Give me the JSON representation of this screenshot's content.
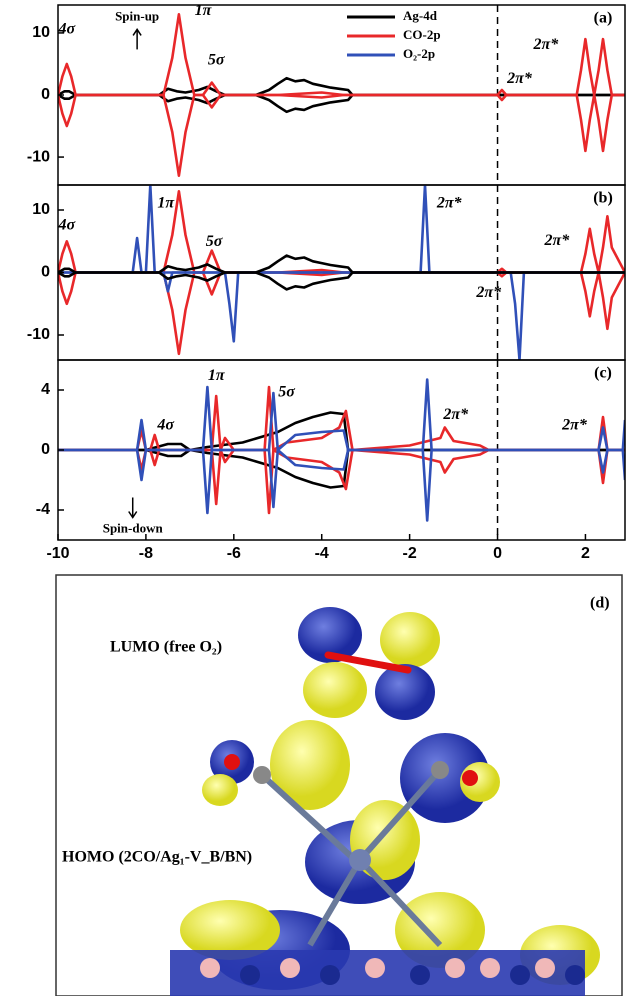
{
  "chart_data": [
    {
      "type": "line",
      "label": "(a)",
      "xlim": [
        -10,
        2.9
      ],
      "ylim": [
        -14.5,
        14.5
      ],
      "yticks": [
        -10,
        0,
        10
      ],
      "vline": 0,
      "legend": [
        {
          "name": "Ag-4d",
          "color": "#000000"
        },
        {
          "name": "CO-2p",
          "color": "#e8282a"
        },
        {
          "name": "O₂-2p",
          "color": "#3050b8"
        }
      ],
      "annotations": [
        "4σ",
        "Spin-up",
        "1π",
        "5σ",
        "2π*",
        "2π*"
      ],
      "series": [
        {
          "color": "#000000",
          "x": [
            -10,
            -9.85,
            -9.75,
            -9.6,
            -7.7,
            -7.5,
            -7.3,
            -7.1,
            -6.8,
            -6.6,
            -6.4,
            -6.2,
            -5.5,
            -5.2,
            -5,
            -4.8,
            -4.6,
            -4.4,
            -4.2,
            -4,
            -3.8,
            -3.6,
            -3.4,
            -3.3,
            -2,
            2.9
          ],
          "values": [
            0,
            0.6,
            0.6,
            0,
            0,
            1,
            0.6,
            0.4,
            0.8,
            1.3,
            0.6,
            0,
            0,
            0.8,
            1.8,
            2.7,
            2.2,
            2.4,
            1.8,
            1.5,
            1.2,
            1,
            0.8,
            0,
            0,
            0
          ],
          "values_down": [
            0,
            -0.6,
            -0.6,
            0,
            0,
            -1,
            -0.6,
            -0.4,
            -0.8,
            -1.3,
            -0.6,
            0,
            0,
            -0.8,
            -1.8,
            -2.7,
            -2.2,
            -2.4,
            -1.8,
            -1.5,
            -1.2,
            -1,
            -0.8,
            0,
            0,
            0
          ]
        },
        {
          "color": "#e8282a",
          "x": [
            -10,
            -9.9,
            -9.8,
            -9.7,
            -9.6,
            -7.6,
            -7.4,
            -7.25,
            -7.1,
            -6.9,
            -6.7,
            -6.5,
            -6.3,
            -5,
            -4,
            -3.5,
            0,
            0.1,
            0.2,
            1.8,
            1.9,
            2.0,
            2.1,
            2.2,
            2.3,
            2.4,
            2.5,
            2.6,
            2.9
          ],
          "values": [
            0,
            3,
            5,
            3,
            0,
            0,
            6,
            13,
            6,
            0,
            0,
            2,
            0,
            0,
            0.4,
            0,
            0,
            0.8,
            0,
            0,
            4,
            9,
            4,
            0,
            4,
            9,
            4,
            0,
            0
          ],
          "values_down": [
            0,
            -3,
            -5,
            -3,
            0,
            0,
            -6,
            -13,
            -6,
            0,
            0,
            -2,
            0,
            0,
            -0.4,
            0,
            0,
            -0.8,
            0,
            0,
            -4,
            -9,
            -4,
            0,
            -4,
            -9,
            -4,
            0,
            0
          ]
        }
      ]
    },
    {
      "type": "line",
      "label": "(b)",
      "xlim": [
        -10,
        2.9
      ],
      "ylim": [
        -14,
        14
      ],
      "yticks": [
        -10,
        0,
        10
      ],
      "vline": 0,
      "annotations": [
        "4σ",
        "1π",
        "5σ",
        "2π*",
        "2π*",
        "2π*"
      ],
      "series": [
        {
          "color": "#e8282a",
          "x": [
            -10,
            -9.9,
            -9.8,
            -9.7,
            -9.6,
            -7.6,
            -7.4,
            -7.25,
            -7.1,
            -6.9,
            -6.7,
            -6.5,
            -6.3,
            -5,
            -4,
            -3.5,
            0,
            0.1,
            0.2,
            1.9,
            2.0,
            2.1,
            2.2,
            2.3,
            2.4,
            2.5,
            2.6,
            2.9
          ],
          "values": [
            0,
            3,
            5,
            3,
            0,
            0,
            6,
            13,
            6,
            0,
            0,
            3.5,
            0,
            0,
            0.4,
            0,
            0,
            0.6,
            0,
            0,
            3,
            7,
            3,
            0,
            4,
            9,
            4,
            0
          ],
          "values_down": [
            0,
            -3,
            -5,
            -3,
            0,
            0,
            -6,
            -13,
            -6,
            0,
            0,
            -3.5,
            0,
            0,
            -0.4,
            0,
            0,
            -0.6,
            0,
            0,
            -3,
            -7,
            -3,
            0,
            -4,
            -9,
            -4,
            0
          ]
        },
        {
          "color": "#3050b8",
          "x": [
            -10,
            -8.3,
            -8.2,
            -8.1,
            -8.0,
            -7.9,
            -7.8,
            -7.6,
            -7.5,
            -7.4,
            -6.2,
            -6.1,
            -6.0,
            -5.9,
            -1.75,
            -1.65,
            -1.55,
            0.3,
            0.4,
            0.5,
            0.6,
            2.9
          ],
          "values": [
            0,
            0,
            5.5,
            0,
            0,
            14,
            0,
            0,
            0,
            0,
            0,
            0,
            0,
            0,
            0,
            14,
            0,
            0,
            0,
            0,
            0,
            0
          ],
          "values_down": [
            0,
            0,
            0,
            0,
            0,
            0,
            0,
            0,
            -3,
            0,
            0,
            -5,
            -11,
            0,
            0,
            0,
            0,
            0,
            -5,
            -14,
            0,
            0
          ]
        },
        {
          "color": "#000000",
          "x": [
            -10,
            -9.85,
            -9.75,
            -9.6,
            -7.7,
            -7.5,
            -7.3,
            -7.1,
            -6.8,
            -6.6,
            -6.4,
            -6.2,
            -5.5,
            -5.2,
            -5,
            -4.8,
            -4.6,
            -4.4,
            -4.2,
            -4,
            -3.8,
            -3.6,
            -3.4,
            -3.3,
            -2,
            2.9
          ],
          "values": [
            0,
            0.6,
            0.6,
            0,
            0,
            1,
            0.6,
            0.4,
            0.8,
            1.3,
            0.6,
            0,
            0,
            0.8,
            1.8,
            2.7,
            2.2,
            2.4,
            1.8,
            1.5,
            1.2,
            1,
            0.8,
            0,
            0,
            0
          ],
          "values_down": [
            0,
            -0.6,
            -0.6,
            0,
            0,
            -1,
            -0.6,
            -0.4,
            -0.8,
            -1.3,
            -0.6,
            0,
            0,
            -0.8,
            -1.8,
            -2.7,
            -2.2,
            -2.4,
            -1.8,
            -1.5,
            -1.2,
            -1,
            -0.8,
            0,
            0,
            0
          ]
        }
      ]
    },
    {
      "type": "line",
      "label": "(c)",
      "xlim": [
        -10,
        2.9
      ],
      "ylim": [
        -6,
        6
      ],
      "yticks": [
        -4,
        0,
        4
      ],
      "vline": 0,
      "xticks": [
        -10,
        -8,
        -6,
        -4,
        -2,
        0,
        2
      ],
      "annotations": [
        "4σ",
        "1π",
        "5σ",
        "2π*",
        "2π*",
        "Spin-down"
      ],
      "series": [
        {
          "color": "#000000",
          "x": [
            -10,
            -8,
            -7.5,
            -7.2,
            -7,
            -6.6,
            -5.8,
            -5,
            -4.6,
            -4.2,
            -3.8,
            -3.5,
            -3.4,
            -2,
            2.9
          ],
          "values": [
            0,
            0,
            0.4,
            0.4,
            0,
            0.2,
            0.5,
            1.2,
            1.8,
            2.2,
            2.5,
            2.4,
            0,
            0,
            0
          ],
          "values_down": [
            0,
            0,
            -0.4,
            -0.4,
            0,
            -0.2,
            -0.5,
            -1.2,
            -1.8,
            -2.2,
            -2.5,
            -2.4,
            0,
            0,
            0
          ]
        },
        {
          "color": "#e8282a",
          "x": [
            -10,
            -8.2,
            -8.1,
            -8.0,
            -7.9,
            -7.8,
            -7.7,
            -7.6,
            -6.5,
            -6.4,
            -6.3,
            -6.2,
            -6.0,
            -5.3,
            -5.2,
            -5.1,
            -4.8,
            -4,
            -3.6,
            -3.45,
            -3.3,
            -2,
            -1.3,
            -1.2,
            -1.0,
            -0.4,
            -0.2,
            0,
            2.3,
            2.4,
            2.5,
            2.9
          ],
          "values": [
            0,
            0,
            1.3,
            0,
            0,
            1,
            0,
            0,
            0,
            3.6,
            0,
            0.8,
            0,
            0,
            4.2,
            0,
            0.5,
            0.8,
            1.5,
            2.6,
            0,
            0.3,
            0.8,
            1.5,
            0.6,
            0.3,
            0,
            0,
            0,
            2.2,
            0,
            0
          ],
          "values_down": [
            0,
            0,
            -1.3,
            0,
            0,
            -1,
            0,
            0,
            0,
            -3.6,
            0,
            -0.8,
            0,
            0,
            -4.2,
            0,
            -0.5,
            -0.8,
            -1.5,
            -2.6,
            0,
            -0.3,
            -0.8,
            -1.5,
            -0.6,
            -0.3,
            0,
            0,
            0,
            -2.2,
            0,
            0
          ]
        },
        {
          "color": "#3050b8",
          "x": [
            -10,
            -8.2,
            -8.1,
            -8.0,
            -6.7,
            -6.6,
            -6.5,
            -5.2,
            -5.1,
            -5.0,
            -4.6,
            -4,
            -3.5,
            -3.4,
            -1.7,
            -1.6,
            -1.5,
            2.3,
            2.4,
            2.5,
            2.85,
            2.9
          ],
          "values": [
            0,
            0,
            2,
            0,
            0,
            4.2,
            0,
            0,
            3.8,
            0,
            1,
            1.2,
            1.3,
            0,
            0,
            4.7,
            0,
            0,
            1.5,
            0,
            0,
            2
          ],
          "values_down": [
            0,
            0,
            -2,
            0,
            0,
            -4.2,
            0,
            0,
            -3.8,
            0,
            -1,
            -1.2,
            -1.3,
            0,
            0,
            -4.7,
            0,
            0,
            -1.5,
            0,
            0,
            -2
          ]
        }
      ]
    }
  ],
  "figure_d": {
    "label": "(d)",
    "lumo": "LUMO (free O₂)",
    "homo": "HOMO (2CO/Ag₁-V_B/BN)"
  }
}
